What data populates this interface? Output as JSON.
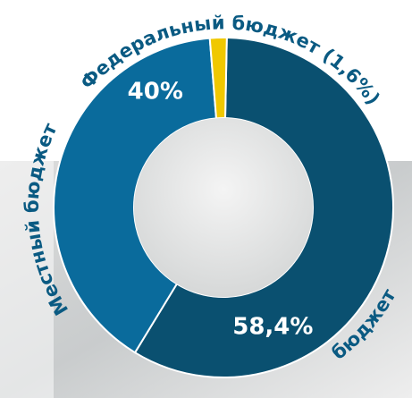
{
  "chart_data": {
    "type": "donut",
    "series": [
      {
        "name": "бюджет",
        "color": "#0a5070",
        "values": [
          58.4
        ],
        "value_labels": [
          "58,4%"
        ]
      },
      {
        "name": "Местный бюджет",
        "color": "#0a6b9c",
        "values": [
          40
        ],
        "value_labels": [
          "40%"
        ]
      },
      {
        "name": "Федеральный бюджет (1,6%)",
        "color": "#f0c800",
        "values": [
          1.6
        ]
      }
    ]
  }
}
